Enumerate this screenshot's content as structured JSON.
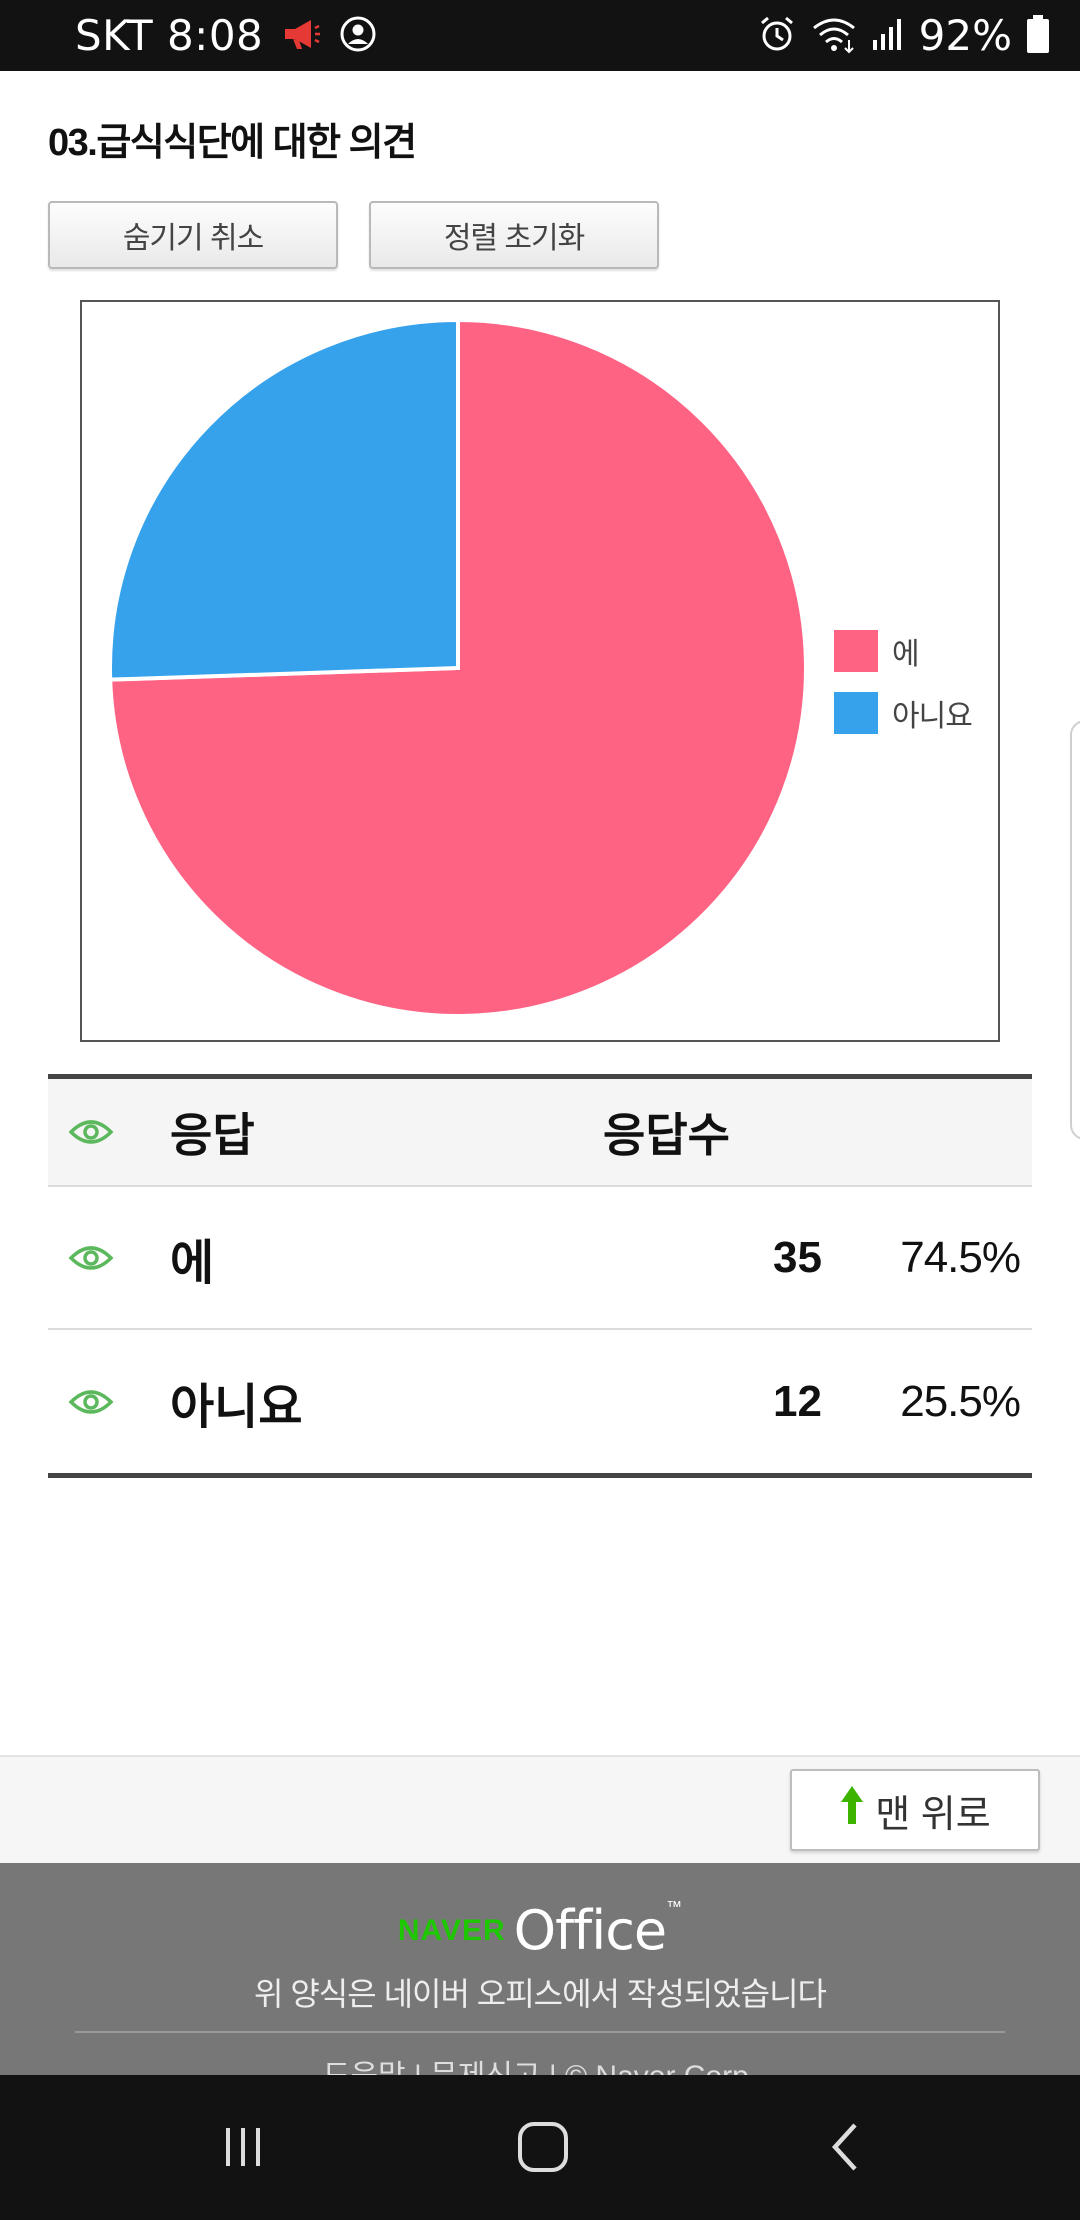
{
  "status_bar": {
    "carrier_time": "SKT 8:08",
    "battery": "92%"
  },
  "question": {
    "title": "03.급식식단에 대한 의견"
  },
  "buttons": {
    "hide_cancel": "숨기기 취소",
    "sort_reset": "정렬 초기화"
  },
  "chart_data": {
    "type": "pie",
    "categories": [
      "에",
      "아니요"
    ],
    "values": [
      35,
      12
    ],
    "percentages": [
      74.5,
      25.5
    ],
    "colors": [
      "#ff6384",
      "#36a2eb"
    ],
    "legend_position": "right"
  },
  "table": {
    "header": {
      "answer": "응답",
      "count": "응답수"
    },
    "rows": [
      {
        "answer": "에",
        "count": "35",
        "percent": "74.5%"
      },
      {
        "answer": "아니요",
        "count": "12",
        "percent": "25.5%"
      }
    ]
  },
  "top_button": {
    "label": "맨 위로"
  },
  "footer": {
    "brand_naver": "NAVER",
    "brand_office": "Office",
    "note": "위 양식은 네이버 오피스에서 작성되었습니다",
    "links": "도움말 | 문제신고 | © Naver Corp."
  },
  "colors": {
    "eye_icon": "#5cb85c",
    "up_arrow": "#3cb400"
  }
}
